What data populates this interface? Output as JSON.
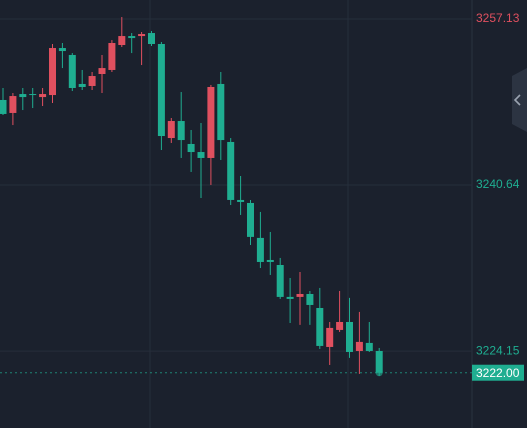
{
  "chart_data": {
    "type": "candlestick",
    "categories": [
      null,
      null,
      null,
      null,
      null,
      null,
      null,
      null,
      null,
      null,
      null,
      null,
      null,
      null,
      null,
      null,
      null,
      null,
      null,
      null,
      null,
      null,
      null,
      null,
      null,
      null,
      null,
      null,
      null,
      null,
      null,
      null,
      null,
      null,
      null,
      null,
      null,
      null,
      null
    ],
    "open": [
      3249.09,
      3247.8,
      3249.68,
      3249.68,
      3249.38,
      3249.58,
      3254.25,
      3253.56,
      3250.68,
      3250.48,
      3251.67,
      3252.07,
      3254.55,
      3255.44,
      3255.44,
      3255.74,
      3254.65,
      3245.31,
      3247.0,
      3244.72,
      3243.92,
      3243.33,
      3250.68,
      3244.92,
      3239.16,
      3238.86,
      3235.39,
      3233.2,
      3232.7,
      3229.53,
      3229.53,
      3229.82,
      3228.43,
      3224.56,
      3226.25,
      3227.04,
      3224.16,
      3224.96,
      3224.16
    ],
    "high": [
      3250.28,
      3249.78,
      3250.28,
      3250.28,
      3250.28,
      3254.65,
      3254.75,
      3253.75,
      3252.07,
      3251.87,
      3253.56,
      3255.04,
      3257.33,
      3255.74,
      3255.84,
      3255.94,
      3254.85,
      3247.3,
      3249.88,
      3246.11,
      3246.8,
      3250.58,
      3251.87,
      3245.31,
      3241.54,
      3239.16,
      3237.97,
      3235.98,
      3233.4,
      3231.41,
      3232.01,
      3230.12,
      3230.42,
      3227.04,
      3230.12,
      3229.43,
      3228.04,
      3227.04,
      3224.46
    ],
    "low": [
      3247.6,
      3246.6,
      3248.09,
      3248.29,
      3248.49,
      3248.79,
      3252.26,
      3249.98,
      3250.08,
      3250.08,
      3249.78,
      3251.87,
      3254.35,
      3253.75,
      3252.56,
      3254.45,
      3244.12,
      3244.82,
      3243.33,
      3241.94,
      3239.36,
      3240.65,
      3243.13,
      3238.66,
      3237.67,
      3234.69,
      3232.4,
      3231.71,
      3229.33,
      3226.94,
      3226.75,
      3226.75,
      3224.36,
      3222.77,
      3226.05,
      3223.47,
      3221.88,
      3224.06,
      3221.68
    ],
    "close": [
      3247.7,
      3249.48,
      3249.38,
      3249.58,
      3249.68,
      3254.25,
      3253.95,
      3250.28,
      3250.38,
      3251.47,
      3252.26,
      3254.75,
      3255.44,
      3255.24,
      3255.64,
      3254.65,
      3245.51,
      3247.0,
      3245.11,
      3243.92,
      3243.33,
      3250.38,
      3245.11,
      3239.16,
      3238.96,
      3235.49,
      3233.0,
      3233.0,
      3229.53,
      3229.33,
      3229.82,
      3228.73,
      3224.66,
      3226.45,
      3227.04,
      3224.06,
      3225.06,
      3224.16,
      3222.0
    ],
    "up_color": "#e0505f",
    "down_color": "#1fae91",
    "ylim": [
      3216.51,
      3259.02
    ],
    "yticks": [
      3257.13,
      3240.64,
      3224.15
    ],
    "ytick_colors": [
      "#e0505f",
      "#1fae91",
      "#1fae91"
    ],
    "grid": true,
    "last_price": {
      "value": 3222.0,
      "label": "3222.00"
    }
  }
}
